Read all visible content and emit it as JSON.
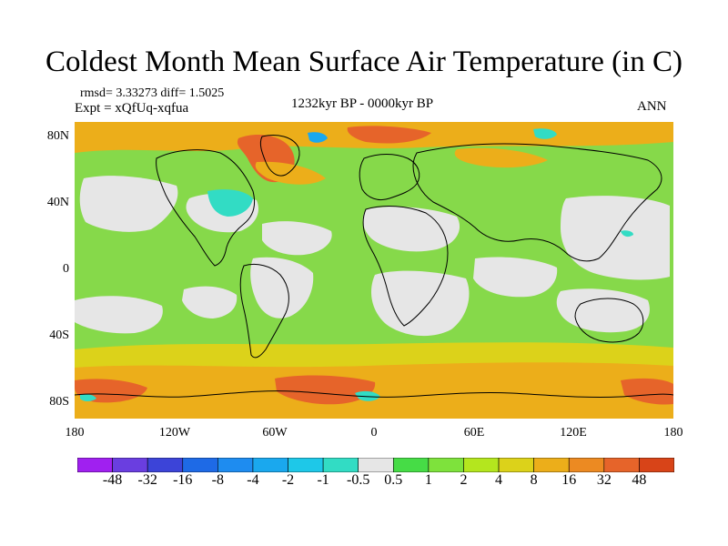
{
  "header": {
    "title": "Coldest Month Mean Surface Air Temperature (in C)",
    "stats": "rmsd= 3.33273 diff= 1.5025",
    "experiment": "Expt = xQfUq-xqfua",
    "period": "1232kyr BP - 0000kyr BP",
    "season": "ANN"
  },
  "axes": {
    "lat_labels": [
      "80N",
      "40N",
      "0",
      "40S",
      "80S"
    ],
    "lon_labels": [
      "180",
      "120W",
      "60W",
      "0",
      "60E",
      "120E",
      "180"
    ]
  },
  "colorbar": {
    "labels": [
      "-48",
      "-32",
      "-16",
      "-8",
      "-4",
      "-2",
      "-1",
      "-0.5",
      "0.5",
      "1",
      "2",
      "4",
      "8",
      "16",
      "32",
      "48"
    ],
    "colors": [
      "#a020f0",
      "#6a3ee0",
      "#3c44d8",
      "#1e6ae6",
      "#1e8cf0",
      "#1aa8ee",
      "#1ec8e8",
      "#32dcc4",
      "#e6e6e6",
      "#46dc46",
      "#7ee23c",
      "#b4e61e",
      "#dcd21a",
      "#ecae1a",
      "#ec8a22",
      "#e6642a",
      "#d84418"
    ]
  },
  "map_colors": {
    "ocean_base": "#86d94a",
    "land_base": "#9cde36",
    "neutral": "#e6e6e6",
    "warm_light": "#dcd21a",
    "warm": "#ecae1a",
    "warm_strong": "#e6642a",
    "cool": "#32dcc4",
    "cool_strong": "#1aa8ee",
    "coast": "#000000"
  }
}
